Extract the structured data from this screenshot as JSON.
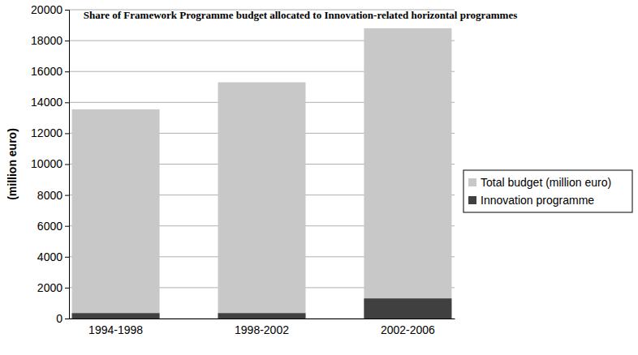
{
  "chart_data": {
    "type": "bar",
    "title": "Share of Framework Programme budget allocated to Innovation-related horizontal programmes",
    "y_label": "(million euro)",
    "categories": [
      "1994-1998",
      "1998-2002",
      "2002-2006"
    ],
    "series": [
      {
        "name": "Total budget (million euro)",
        "color": "#c8c8c8",
        "values": [
          13550,
          15300,
          18800
        ]
      },
      {
        "name": "Innovation programme",
        "color": "#404040",
        "values": [
          350,
          350,
          1300
        ]
      }
    ],
    "stacked": false,
    "ylim": [
      0,
      20000
    ],
    "yticks": [
      0,
      2000,
      4000,
      6000,
      8000,
      10000,
      12000,
      14000,
      16000,
      18000,
      20000
    ],
    "grid": true,
    "legend": "right"
  }
}
